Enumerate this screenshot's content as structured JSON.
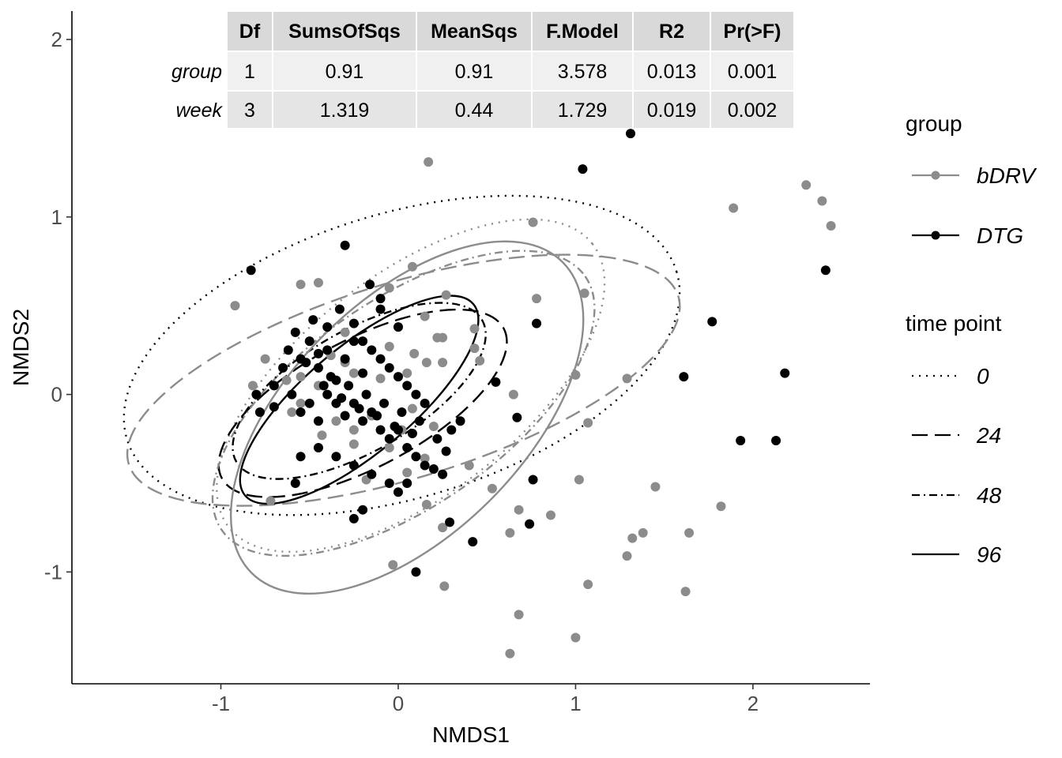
{
  "chart_data": {
    "type": "scatter",
    "xlabel": "NMDS1",
    "ylabel": "NMDS2",
    "xlim": [
      -1.84,
      2.66
    ],
    "ylim": [
      -1.63,
      2.16
    ],
    "xticks": [
      -1,
      0,
      1,
      2
    ],
    "xtick_labels": [
      "-1",
      "0",
      "1",
      "2"
    ],
    "yticks": [
      -1,
      0,
      1,
      2
    ],
    "ytick_labels": [
      "-1",
      "0",
      "1",
      "2"
    ],
    "grid": false,
    "colors": {
      "bDRV": "#8c8c8c",
      "DTG": "#000000"
    },
    "legend": {
      "group": {
        "title": "group",
        "entries": [
          "bDRV",
          "DTG"
        ]
      },
      "timepoint": {
        "title": "time point",
        "entries": [
          "0",
          "24",
          "48",
          "96"
        ]
      }
    },
    "table": {
      "columns": [
        "Df",
        "SumsOfSqs",
        "MeanSqs",
        "F.Model",
        "R2",
        "Pr(>F)"
      ],
      "rows": [
        {
          "name": "group",
          "cells": [
            "1",
            "0.91",
            "0.91",
            "3.578",
            "0.013",
            "0.001"
          ]
        },
        {
          "name": "week",
          "cells": [
            "3",
            "1.319",
            "0.44",
            "1.729",
            "0.019",
            "0.002"
          ]
        }
      ]
    },
    "ellipses": [
      {
        "group": "bDRV",
        "timepoint": "0",
        "cx": 0.07,
        "cy": 0.05,
        "rx": 1.3,
        "ry": 0.62,
        "angle": -38
      },
      {
        "group": "DTG",
        "timepoint": "0",
        "cx": 0.02,
        "cy": 0.22,
        "rx": 1.62,
        "ry": 0.8,
        "angle": -17
      },
      {
        "group": "bDRV",
        "timepoint": "24",
        "cx": 0.03,
        "cy": 0.08,
        "rx": 1.62,
        "ry": 0.55,
        "angle": -17
      },
      {
        "group": "DTG",
        "timepoint": "24",
        "cx": -0.2,
        "cy": -0.05,
        "rx": 0.9,
        "ry": 0.36,
        "angle": -28
      },
      {
        "group": "bDRV",
        "timepoint": "48",
        "cx": 0.03,
        "cy": -0.05,
        "rx": 1.25,
        "ry": 0.58,
        "angle": -35
      },
      {
        "group": "DTG",
        "timepoint": "48",
        "cx": -0.22,
        "cy": 0.02,
        "rx": 0.8,
        "ry": 0.34,
        "angle": -30
      },
      {
        "group": "bDRV",
        "timepoint": "96",
        "cx": 0.05,
        "cy": -0.13,
        "rx": 1.24,
        "ry": 0.66,
        "angle": -45
      },
      {
        "group": "DTG",
        "timepoint": "96",
        "cx": -0.22,
        "cy": -0.03,
        "rx": 0.84,
        "ry": 0.3,
        "angle": -40
      }
    ],
    "series": [
      {
        "name": "bDRV",
        "points": [
          [
            0.17,
            1.31
          ],
          [
            0.76,
            0.97
          ],
          [
            1.89,
            1.05
          ],
          [
            2.3,
            1.18
          ],
          [
            2.39,
            1.09
          ],
          [
            2.44,
            0.95
          ],
          [
            -0.55,
            0.62
          ],
          [
            -0.45,
            0.63
          ],
          [
            -0.05,
            0.6
          ],
          [
            0.08,
            0.72
          ],
          [
            0.27,
            0.56
          ],
          [
            0.78,
            0.54
          ],
          [
            1.05,
            0.57
          ],
          [
            0.15,
            0.44
          ],
          [
            0.43,
            0.37
          ],
          [
            0.25,
            0.32
          ],
          [
            0.22,
            0.32
          ],
          [
            -0.3,
            0.35
          ],
          [
            0.43,
            0.26
          ],
          [
            0.46,
            0.19
          ],
          [
            0.65,
            0.0
          ],
          [
            0.09,
            0.23
          ],
          [
            0.16,
            0.18
          ],
          [
            -0.75,
            0.2
          ],
          [
            -0.82,
            0.05
          ],
          [
            -0.55,
            0.1
          ],
          [
            -0.45,
            0.05
          ],
          [
            -0.25,
            0.12
          ],
          [
            -0.1,
            0.09
          ],
          [
            0.05,
            0.12
          ],
          [
            0.25,
            0.18
          ],
          [
            -0.6,
            -0.1
          ],
          [
            -0.35,
            -0.15
          ],
          [
            -0.15,
            -0.12
          ],
          [
            0.02,
            -0.2
          ],
          [
            0.2,
            -0.18
          ],
          [
            -0.43,
            -0.23
          ],
          [
            -0.25,
            -0.28
          ],
          [
            -0.05,
            -0.3
          ],
          [
            0.15,
            -0.36
          ],
          [
            0.4,
            -0.4
          ],
          [
            0.53,
            -0.53
          ],
          [
            0.68,
            -0.65
          ],
          [
            0.86,
            -0.68
          ],
          [
            1.02,
            -0.48
          ],
          [
            1.07,
            -0.16
          ],
          [
            1.0,
            0.11
          ],
          [
            1.29,
            0.09
          ],
          [
            1.45,
            -0.52
          ],
          [
            1.82,
            -0.63
          ],
          [
            1.32,
            -0.81
          ],
          [
            1.38,
            -0.78
          ],
          [
            1.64,
            -0.78
          ],
          [
            1.29,
            -0.91
          ],
          [
            0.63,
            -0.78
          ],
          [
            0.25,
            -0.75
          ],
          [
            -0.03,
            -0.96
          ],
          [
            0.26,
            -1.08
          ],
          [
            1.07,
            -1.07
          ],
          [
            1.62,
            -1.11
          ],
          [
            0.68,
            -1.24
          ],
          [
            1.0,
            -1.37
          ],
          [
            0.63,
            -1.46
          ],
          [
            -0.72,
            -0.6
          ],
          [
            -0.92,
            0.5
          ],
          [
            0.16,
            -0.62
          ],
          [
            -0.18,
            -0.48
          ],
          [
            0.05,
            -0.44
          ],
          [
            -0.38,
            0.22
          ],
          [
            -0.05,
            0.27
          ],
          [
            -0.55,
            -0.05
          ],
          [
            -0.63,
            0.08
          ],
          [
            0.08,
            -0.08
          ],
          [
            -0.25,
            -0.2
          ],
          [
            -0.3,
            0.18
          ]
        ]
      },
      {
        "name": "DTG",
        "points": [
          [
            1.31,
            1.47
          ],
          [
            1.04,
            1.27
          ],
          [
            -0.3,
            0.84
          ],
          [
            -0.83,
            0.7
          ],
          [
            2.41,
            0.7
          ],
          [
            1.77,
            0.41
          ],
          [
            2.18,
            0.12
          ],
          [
            1.61,
            0.1
          ],
          [
            1.93,
            -0.26
          ],
          [
            2.13,
            -0.26
          ],
          [
            0.76,
            -0.48
          ],
          [
            0.78,
            0.4
          ],
          [
            -0.16,
            0.62
          ],
          [
            -0.1,
            0.54
          ],
          [
            0.55,
            0.07
          ],
          [
            0.67,
            -0.13
          ],
          [
            0.42,
            -0.83
          ],
          [
            0.74,
            -0.73
          ],
          [
            0.29,
            -0.72
          ],
          [
            0.1,
            -1.0
          ],
          [
            -0.58,
            -0.5
          ],
          [
            -0.7,
            -0.07
          ],
          [
            -0.78,
            -0.1
          ],
          [
            -0.8,
            0.0
          ],
          [
            -0.55,
            0.2
          ],
          [
            -0.58,
            0.35
          ],
          [
            -0.5,
            0.3
          ],
          [
            -0.45,
            0.15
          ],
          [
            -0.4,
            0.25
          ],
          [
            -0.35,
            0.08
          ],
          [
            -0.3,
            0.2
          ],
          [
            -0.25,
            0.3
          ],
          [
            -0.2,
            0.12
          ],
          [
            -0.15,
            0.25
          ],
          [
            -0.1,
            0.2
          ],
          [
            -0.05,
            0.15
          ],
          [
            0.0,
            0.1
          ],
          [
            0.05,
            0.05
          ],
          [
            0.1,
            0.0
          ],
          [
            0.15,
            -0.05
          ],
          [
            -0.6,
            0.0
          ],
          [
            -0.55,
            -0.1
          ],
          [
            -0.5,
            -0.05
          ],
          [
            -0.45,
            -0.15
          ],
          [
            -0.4,
            0.0
          ],
          [
            -0.35,
            -0.05
          ],
          [
            -0.3,
            -0.12
          ],
          [
            -0.25,
            -0.05
          ],
          [
            -0.2,
            -0.15
          ],
          [
            -0.15,
            -0.1
          ],
          [
            -0.1,
            -0.2
          ],
          [
            -0.05,
            -0.25
          ],
          [
            0.0,
            -0.2
          ],
          [
            0.05,
            -0.3
          ],
          [
            0.1,
            -0.35
          ],
          [
            0.15,
            -0.4
          ],
          [
            0.2,
            -0.42
          ],
          [
            0.25,
            -0.45
          ],
          [
            -0.55,
            -0.35
          ],
          [
            -0.45,
            -0.3
          ],
          [
            -0.35,
            -0.35
          ],
          [
            -0.25,
            -0.4
          ],
          [
            -0.15,
            -0.45
          ],
          [
            -0.05,
            -0.5
          ],
          [
            0.0,
            -0.55
          ],
          [
            0.05,
            -0.5
          ],
          [
            -0.2,
            -0.65
          ],
          [
            -0.25,
            -0.7
          ],
          [
            0.3,
            -0.2
          ],
          [
            0.35,
            -0.15
          ],
          [
            -0.65,
            0.15
          ],
          [
            -0.7,
            0.05
          ],
          [
            -0.48,
            0.42
          ],
          [
            -0.4,
            0.38
          ],
          [
            -0.33,
            0.48
          ],
          [
            -0.25,
            0.4
          ],
          [
            -0.2,
            0.3
          ],
          [
            -0.1,
            0.48
          ],
          [
            0.0,
            0.38
          ],
          [
            -0.45,
            0.23
          ],
          [
            -0.38,
            0.1
          ],
          [
            -0.28,
            0.05
          ],
          [
            -0.18,
            0.0
          ],
          [
            -0.08,
            -0.05
          ],
          [
            0.02,
            -0.1
          ],
          [
            0.12,
            -0.15
          ],
          [
            0.22,
            -0.25
          ],
          [
            0.27,
            -0.32
          ],
          [
            -0.62,
            0.25
          ],
          [
            -0.52,
            0.18
          ],
          [
            -0.42,
            0.05
          ],
          [
            -0.32,
            -0.02
          ],
          [
            -0.22,
            -0.08
          ],
          [
            -0.12,
            -0.12
          ],
          [
            -0.02,
            -0.18
          ],
          [
            0.08,
            -0.22
          ]
        ]
      }
    ]
  }
}
